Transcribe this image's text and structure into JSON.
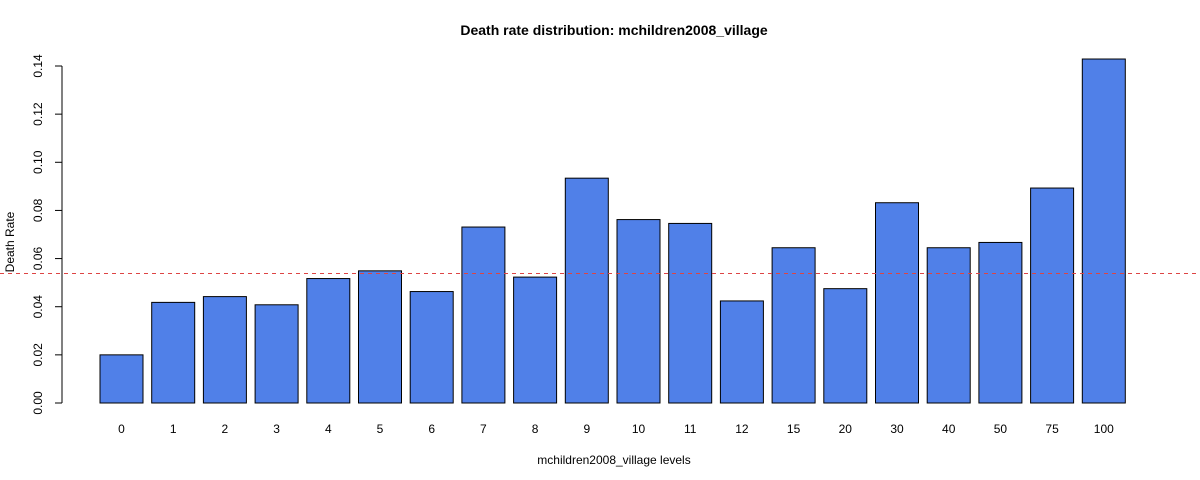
{
  "chart_data": {
    "type": "bar",
    "title": "Death rate distribution: mchildren2008_village",
    "xlabel": "mchildren2008_village levels",
    "ylabel": "Death Rate",
    "categories": [
      "0",
      "1",
      "2",
      "3",
      "4",
      "5",
      "6",
      "7",
      "8",
      "9",
      "10",
      "11",
      "12",
      "15",
      "20",
      "30",
      "40",
      "50",
      "75",
      "100"
    ],
    "values": [
      0.02,
      0.0418,
      0.0442,
      0.0408,
      0.0517,
      0.0549,
      0.0463,
      0.0731,
      0.0523,
      0.0934,
      0.0762,
      0.0746,
      0.0424,
      0.0645,
      0.0475,
      0.0832,
      0.0645,
      0.0667,
      0.0893,
      0.1429
    ],
    "yticks": [
      "0.00",
      "0.02",
      "0.04",
      "0.06",
      "0.08",
      "0.10",
      "0.12",
      "0.14"
    ],
    "ylim": [
      0,
      0.14
    ],
    "reference_line": {
      "value": 0.0538,
      "style": "dashed",
      "color": "#dd4444"
    },
    "bar_color": "#5080e8",
    "bar_border": "#000000",
    "grid": false
  }
}
